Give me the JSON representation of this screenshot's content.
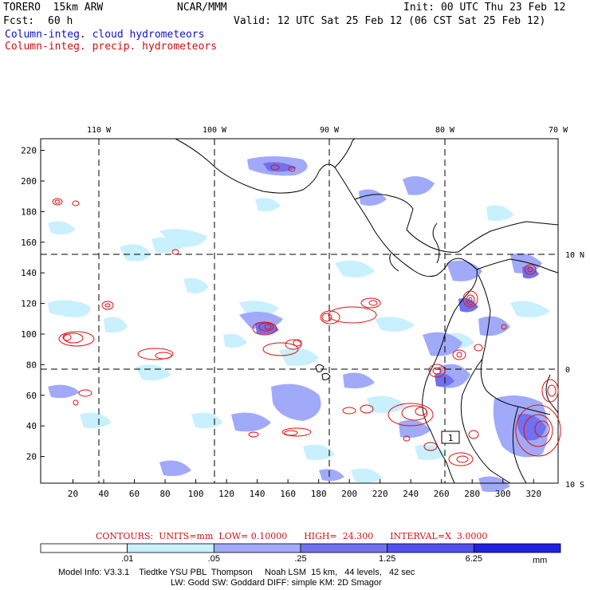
{
  "header": {
    "model": "TORERO  15km ARW",
    "center": "NCAR/MMM",
    "init": "Init: 00 UTC Thu 23 Feb 12",
    "fcst_label": "Fcst:",
    "fcst_value": "60 h",
    "valid": "Valid: 12 UTC Sat 25 Feb 12 (06 CST Sat 25 Feb 12)",
    "field_cloud": "Column-integ. cloud hydrometeors",
    "field_precip": "Column-integ. precip. hydrometeors"
  },
  "map": {
    "top_lon_labels": [
      "110 W",
      "100 W",
      "90 W",
      "80 W",
      "70 W"
    ],
    "right_lat_labels": [
      "10 N",
      "0",
      "10 S"
    ],
    "left_y_ticks": [
      "220",
      "200",
      "180",
      "160",
      "140",
      "120",
      "100",
      "80",
      "60",
      "40",
      "20"
    ],
    "bottom_x_ticks": [
      "20",
      "40",
      "60",
      "80",
      "100",
      "120",
      "140",
      "160",
      "180",
      "200",
      "220",
      "240",
      "260",
      "280",
      "300",
      "320"
    ],
    "box_label": "1",
    "colors": {
      "cloud_light": "#c8f0ff",
      "cloud_mid": "#a0aaf8",
      "cloud_dark": "#7070f0",
      "precip_contour": "#e01010",
      "coast": "#000000"
    }
  },
  "contours_note": "CONTOURS:  UNITS=mm  LOW= 0.10000      HIGH=  24.300      INTERVAL=X  3.0000",
  "colorbar": {
    "levels": [
      ".01",
      ".05",
      ".25",
      "1.25",
      "6.25"
    ],
    "unit": "mm",
    "colors": [
      "#ffffff",
      "#c8f0ff",
      "#a0aaf8",
      "#7070f0",
      "#5050f0",
      "#2020e0"
    ]
  },
  "model_info": {
    "line1": "Model Info: V3.3.1    Tiedtke YSU PBL  Thompson     Noah LSM  15 km,   44 levels,   42 sec",
    "line2": "LW: Godd SW: Goddard DIFF: simple KM: 2D Smagor"
  }
}
